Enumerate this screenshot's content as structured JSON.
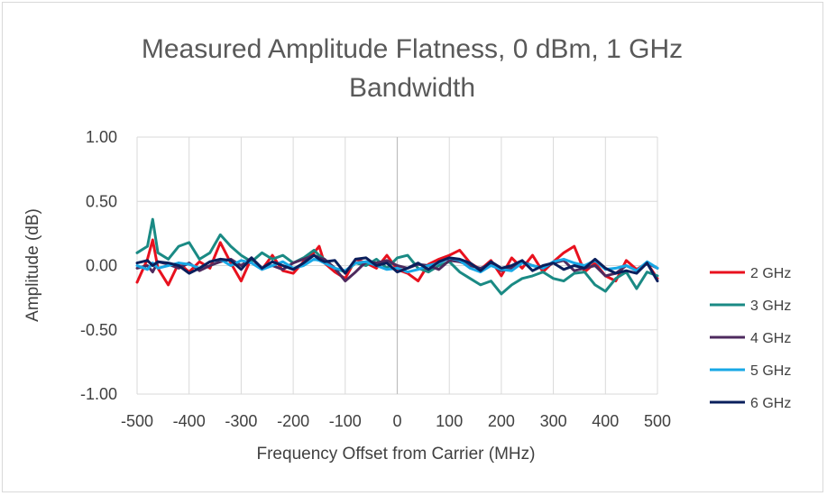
{
  "chart_data": {
    "type": "line",
    "title": [
      "Measured Amplitude Flatness, 0 dBm, 1 GHz",
      "Bandwidth"
    ],
    "xlabel": "Frequency Offset from Carrier (MHz)",
    "ylabel": "Amplitude (dB)",
    "xlim": [
      -500,
      500
    ],
    "ylim": [
      -1.0,
      1.0
    ],
    "x_ticks": [
      -500,
      -400,
      -300,
      -200,
      -100,
      0,
      100,
      200,
      300,
      400,
      500
    ],
    "x_tick_labels": [
      "-500",
      "-400",
      "-300",
      "-200",
      "-100",
      "0",
      "100",
      "200",
      "300",
      "400",
      "500"
    ],
    "y_ticks": [
      1.0,
      0.5,
      0.0,
      -0.5,
      -1.0
    ],
    "y_tick_labels": [
      "1.00",
      "0.50",
      "0.00",
      "-0.50",
      "-1.00"
    ],
    "grid": true,
    "legend_position": "right",
    "x": [
      -500,
      -480,
      -470,
      -460,
      -440,
      -420,
      -400,
      -380,
      -360,
      -340,
      -320,
      -300,
      -280,
      -260,
      -240,
      -220,
      -200,
      -180,
      -160,
      -150,
      -140,
      -120,
      -100,
      -80,
      -60,
      -40,
      -20,
      0,
      20,
      40,
      60,
      80,
      100,
      120,
      140,
      160,
      180,
      200,
      220,
      240,
      260,
      280,
      300,
      320,
      340,
      360,
      380,
      400,
      420,
      440,
      460,
      480,
      500
    ],
    "series": [
      {
        "name": "2 GHz",
        "color": "#e8111e",
        "values": [
          -0.13,
          0.05,
          0.2,
          -0.02,
          -0.15,
          0.02,
          -0.05,
          0.03,
          -0.02,
          0.18,
          0.02,
          -0.12,
          0.06,
          -0.03,
          0.08,
          -0.04,
          -0.06,
          0.03,
          0.1,
          0.15,
          0.02,
          -0.05,
          -0.1,
          0.05,
          0.02,
          -0.02,
          0.08,
          -0.03,
          -0.06,
          -0.12,
          0.01,
          0.05,
          0.08,
          0.12,
          0.02,
          -0.03,
          0.04,
          -0.08,
          0.06,
          -0.02,
          0.08,
          -0.05,
          0.03,
          0.1,
          0.15,
          -0.05,
          0.02,
          -0.08,
          -0.12,
          0.04,
          -0.03,
          0.02,
          -0.1
        ]
      },
      {
        "name": "3 GHz",
        "color": "#1a8a84",
        "values": [
          0.1,
          0.15,
          0.36,
          0.1,
          0.05,
          0.15,
          0.18,
          0.05,
          0.1,
          0.24,
          0.15,
          0.08,
          0.03,
          0.1,
          0.05,
          0.08,
          0.02,
          0.06,
          0.12,
          0.08,
          0.05,
          -0.02,
          -0.05,
          0.02,
          0.0,
          0.05,
          -0.02,
          0.06,
          0.08,
          -0.02,
          -0.05,
          0.0,
          0.03,
          -0.05,
          -0.1,
          -0.15,
          -0.12,
          -0.22,
          -0.15,
          -0.1,
          -0.08,
          -0.05,
          -0.1,
          -0.12,
          -0.06,
          -0.05,
          -0.15,
          -0.2,
          -0.1,
          -0.05,
          -0.18,
          -0.05,
          -0.08
        ]
      },
      {
        "name": "4 GHz",
        "color": "#4e2a5e",
        "values": [
          -0.02,
          0.0,
          -0.05,
          0.03,
          0.01,
          -0.02,
          0.02,
          -0.04,
          0.0,
          0.03,
          0.05,
          0.0,
          0.06,
          -0.02,
          0.0,
          -0.03,
          0.02,
          0.05,
          0.08,
          0.06,
          0.05,
          -0.02,
          -0.12,
          -0.05,
          0.03,
          0.02,
          0.04,
          0.0,
          -0.02,
          0.01,
          0.0,
          -0.03,
          0.04,
          0.03,
          0.0,
          -0.02,
          0.01,
          -0.04,
          -0.02,
          0.03,
          0.0,
          -0.02,
          0.02,
          0.04,
          -0.04,
          -0.02,
          0.0,
          -0.08,
          -0.06,
          0.0,
          -0.04,
          0.02,
          -0.02
        ]
      },
      {
        "name": "5 GHz",
        "color": "#18a8e6",
        "values": [
          0.0,
          -0.03,
          0.02,
          -0.02,
          0.0,
          0.02,
          0.01,
          -0.02,
          0.03,
          0.05,
          0.0,
          0.04,
          0.02,
          -0.03,
          0.0,
          0.03,
          -0.02,
          0.0,
          0.05,
          0.04,
          0.02,
          -0.02,
          -0.04,
          0.02,
          0.03,
          0.0,
          -0.03,
          -0.02,
          -0.05,
          -0.03,
          0.0,
          0.02,
          0.06,
          0.04,
          -0.02,
          -0.05,
          0.0,
          -0.03,
          -0.04,
          0.02,
          0.0,
          -0.02,
          0.03,
          0.05,
          0.02,
          0.0,
          0.04,
          -0.03,
          -0.02,
          0.0,
          -0.04,
          0.03,
          -0.02
        ]
      },
      {
        "name": "6 GHz",
        "color": "#0a1f5c",
        "values": [
          0.02,
          0.04,
          0.0,
          0.03,
          0.02,
          0.0,
          -0.06,
          -0.02,
          0.03,
          0.05,
          0.04,
          -0.03,
          0.06,
          -0.02,
          0.03,
          0.0,
          -0.03,
          0.02,
          0.08,
          0.05,
          0.03,
          0.04,
          -0.06,
          0.05,
          0.06,
          0.0,
          0.02,
          -0.05,
          -0.02,
          0.02,
          -0.03,
          0.03,
          0.06,
          0.05,
          0.02,
          -0.04,
          0.03,
          -0.02,
          0.0,
          0.04,
          -0.04,
          0.0,
          0.02,
          -0.03,
          0.0,
          -0.02,
          0.05,
          -0.02,
          -0.06,
          -0.04,
          -0.06,
          0.02,
          -0.12
        ]
      }
    ]
  }
}
